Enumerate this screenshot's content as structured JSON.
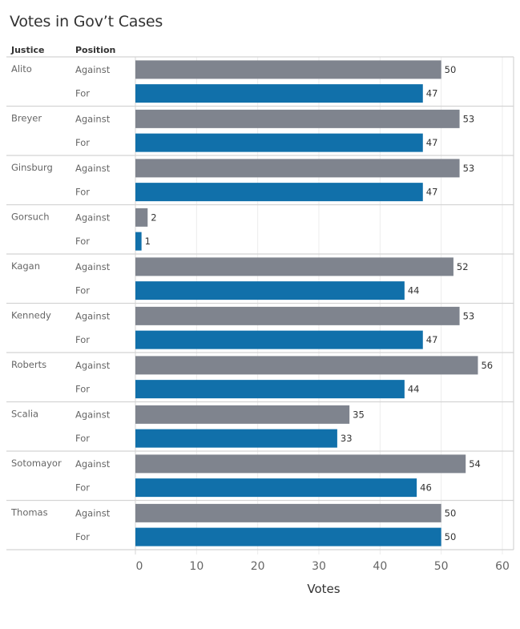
{
  "chart_data": {
    "type": "bar",
    "orientation": "horizontal",
    "title": "Votes in Gov’t Cases",
    "row_headers": [
      "Justice",
      "Position"
    ],
    "xlabel": "Votes",
    "ylabel": "",
    "xlim": [
      0,
      60
    ],
    "xticks": [
      0,
      10,
      20,
      30,
      40,
      50,
      60
    ],
    "grid": true,
    "colors": {
      "Against": "#7f848e",
      "For": "#1170aa"
    },
    "categories": [
      "Alito",
      "Breyer",
      "Ginsburg",
      "Gorsuch",
      "Kagan",
      "Kennedy",
      "Roberts",
      "Scalia",
      "Sotomayor",
      "Thomas"
    ],
    "series": [
      {
        "name": "Against",
        "values": [
          50,
          53,
          53,
          2,
          52,
          53,
          56,
          35,
          54,
          50
        ]
      },
      {
        "name": "For",
        "values": [
          47,
          47,
          47,
          1,
          44,
          47,
          44,
          33,
          46,
          50
        ]
      }
    ]
  }
}
